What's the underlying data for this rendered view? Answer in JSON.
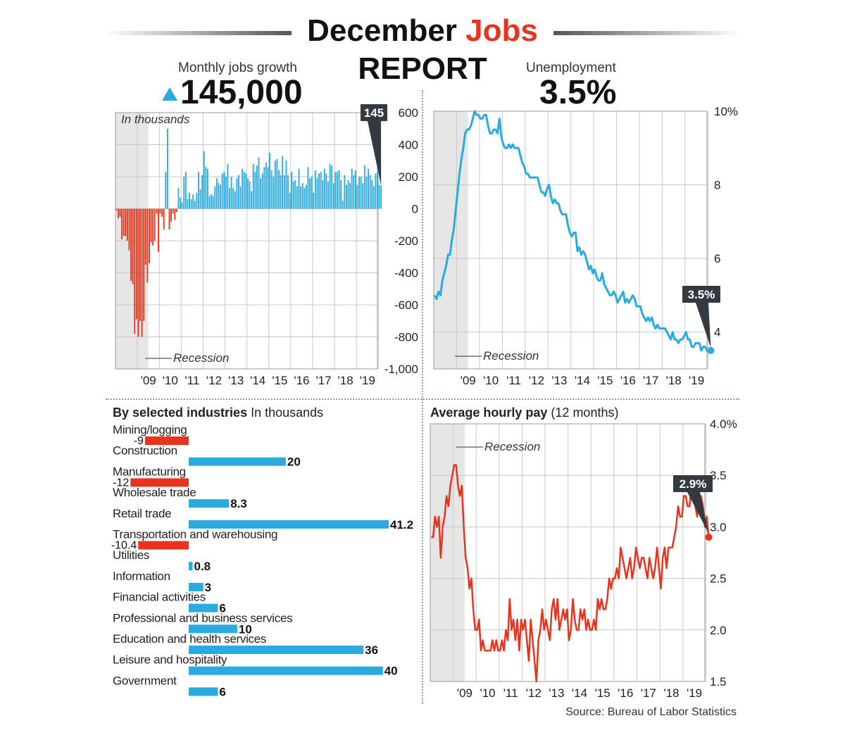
{
  "header": {
    "title_part1": "December",
    "title_accent": "Jobs",
    "title_line2": "REPORT"
  },
  "kpis": {
    "jobs_label": "Monthly jobs growth",
    "jobs_value": "145,000",
    "unemployment_label": "Unemployment",
    "unemployment_value": "3.5%"
  },
  "industries_section": {
    "title_bold": "By selected industries",
    "title_rest": "In thousands"
  },
  "pay_section": {
    "title_bold": "Average hourly pay",
    "title_rest": "(12 months)"
  },
  "source": "Source: Bureau of Labor Statistics",
  "colors": {
    "accent_red": "#e8341c",
    "accent_blue": "#29abe2",
    "recession_band": "#e6e6e6",
    "callout": "#333a40"
  },
  "chart_data": [
    {
      "type": "bar",
      "name": "jobs",
      "subtitle": "In thousands",
      "x_tick_labels": [
        "'09",
        "'10",
        "'11",
        "'12",
        "'13",
        "'14",
        "'15",
        "'16",
        "'17",
        "'18",
        "'19"
      ],
      "ylim": [
        -1000,
        600
      ],
      "y_ticks": [
        600,
        400,
        200,
        0,
        -200,
        -400,
        -600,
        -800,
        -1000
      ],
      "y_tick_labels": [
        "600",
        "400",
        "200",
        "0",
        "-200",
        "-400",
        "-600",
        "-800",
        "-1,000"
      ],
      "recession_label": "Recession",
      "recession_span": [
        "2008-01",
        "2009-06"
      ],
      "last_value_label": "145",
      "series": [
        {
          "start": "2008-01",
          "values": [
            -10,
            -60,
            -50,
            -190,
            -170,
            -170,
            -200,
            -260,
            -450,
            -470,
            -780,
            -690,
            -800,
            -700,
            -800,
            -700,
            -350,
            -460,
            -340,
            -210,
            -230,
            -200,
            -30,
            -270,
            -30,
            -50,
            -130,
            230,
            500,
            -130,
            -80,
            -30,
            -70,
            -20,
            130,
            70,
            40,
            200,
            230,
            60,
            100,
            60,
            90,
            50,
            100,
            230,
            120,
            210,
            360,
            260,
            250,
            80,
            90,
            80,
            140,
            190,
            160,
            150,
            220,
            230,
            200,
            280,
            130,
            200,
            130,
            110,
            190,
            210,
            140,
            250,
            230,
            220,
            190,
            170,
            110,
            280,
            230,
            270,
            320,
            190,
            220,
            260,
            290,
            260,
            350,
            240,
            200,
            300,
            310,
            240,
            210,
            330,
            210,
            300,
            210,
            100,
            230,
            170,
            180,
            140,
            250,
            140,
            160,
            130,
            150,
            260,
            190,
            200,
            100,
            240,
            190,
            220,
            230,
            180,
            250,
            220,
            170,
            280,
            270,
            160,
            230,
            230,
            240,
            180,
            50,
            210,
            150,
            180,
            160,
            250,
            210,
            240,
            150,
            200,
            200,
            160,
            270,
            200,
            250,
            210,
            180,
            140,
            220,
            230,
            150,
            145
          ]
        }
      ]
    },
    {
      "type": "line",
      "name": "unemployment",
      "x_tick_labels": [
        "'09",
        "'10",
        "'11",
        "'12",
        "'13",
        "'14",
        "'15",
        "'16",
        "'17",
        "'18",
        "'19"
      ],
      "y_tick_labels": [
        "10%",
        "8",
        "6",
        "4"
      ],
      "y_ticks": [
        10,
        8,
        6,
        4
      ],
      "ylim": [
        3.0,
        10.0
      ],
      "recession_label": "Recession",
      "recession_span": [
        "2008-01",
        "2009-06"
      ],
      "last_value_label": "3.5%",
      "series": [
        {
          "start": "2008-01",
          "values": [
            5.0,
            4.9,
            5.1,
            5.0,
            5.4,
            5.6,
            5.8,
            6.1,
            6.1,
            6.5,
            6.8,
            7.3,
            7.8,
            8.3,
            8.7,
            9.0,
            9.4,
            9.5,
            9.5,
            9.6,
            9.8,
            10.0,
            9.9,
            9.9,
            9.8,
            9.8,
            9.9,
            9.9,
            9.6,
            9.4,
            9.4,
            9.5,
            9.5,
            9.4,
            9.8,
            9.3,
            9.1,
            9.0,
            9.0,
            9.1,
            9.0,
            9.1,
            9.0,
            9.0,
            9.0,
            8.8,
            8.6,
            8.5,
            8.3,
            8.3,
            8.2,
            8.2,
            8.2,
            8.2,
            8.2,
            8.0,
            7.8,
            7.8,
            7.7,
            7.9,
            8.0,
            7.7,
            7.5,
            7.6,
            7.5,
            7.5,
            7.3,
            7.2,
            7.2,
            7.2,
            6.9,
            6.7,
            6.6,
            6.7,
            6.7,
            6.2,
            6.3,
            6.1,
            6.2,
            6.1,
            5.9,
            5.7,
            5.8,
            5.6,
            5.7,
            5.5,
            5.4,
            5.4,
            5.6,
            5.3,
            5.2,
            5.1,
            5.0,
            5.0,
            5.1,
            5.0,
            4.8,
            4.9,
            5.0,
            5.1,
            4.8,
            4.9,
            4.8,
            4.9,
            5.0,
            4.9,
            4.7,
            4.7,
            4.7,
            4.5,
            4.4,
            4.3,
            4.4,
            4.3,
            4.4,
            4.2,
            4.1,
            4.2,
            4.1,
            4.1,
            4.1,
            4.1,
            4.0,
            3.9,
            3.8,
            4.0,
            3.8,
            3.8,
            3.7,
            3.8,
            3.8,
            3.9,
            4.0,
            3.8,
            3.8,
            3.6,
            3.6,
            3.7,
            3.7,
            3.7,
            3.5,
            3.6,
            3.6,
            3.5,
            3.5,
            3.5
          ]
        }
      ]
    },
    {
      "type": "line",
      "name": "hourly_pay",
      "x_tick_labels": [
        "'09",
        "'10",
        "'11",
        "'12",
        "'13",
        "'14",
        "'15",
        "'16",
        "'17",
        "'18",
        "'19"
      ],
      "y_tick_labels": [
        "4.0%",
        "3.5",
        "3.0",
        "2.5",
        "2.0",
        "1.5"
      ],
      "y_ticks": [
        4.0,
        3.5,
        3.0,
        2.5,
        2.0,
        1.5
      ],
      "ylim": [
        1.5,
        4.0
      ],
      "recession_label": "Recession",
      "recession_span": [
        "2008-01",
        "2009-06"
      ],
      "last_value_label": "2.9%",
      "series": [
        {
          "start": "2008-01",
          "values": [
            2.9,
            2.9,
            3.1,
            3.0,
            3.1,
            2.7,
            3.0,
            3.1,
            3.3,
            3.2,
            3.4,
            3.5,
            3.6,
            3.6,
            3.4,
            3.3,
            3.4,
            3.0,
            2.7,
            2.6,
            2.4,
            2.5,
            2.2,
            2.0,
            2.0,
            2.1,
            1.8,
            1.9,
            1.8,
            1.8,
            1.8,
            1.8,
            1.9,
            1.8,
            1.9,
            1.8,
            1.8,
            1.9,
            1.8,
            2.0,
            1.9,
            2.3,
            2.0,
            2.1,
            1.9,
            2.1,
            1.8,
            2.1,
            2.0,
            2.1,
            1.9,
            1.7,
            2.1,
            1.9,
            1.7,
            1.5,
            1.9,
            2.0,
            2.2,
            2.0,
            2.1,
            2.0,
            1.9,
            2.2,
            2.3,
            2.1,
            2.3,
            2.0,
            2.1,
            2.2,
            2.1,
            2.2,
            1.9,
            2.0,
            2.3,
            2.1,
            2.0,
            2.0,
            2.2,
            2.1,
            2.2,
            2.0,
            2.1,
            2.0,
            2.0,
            2.1,
            2.0,
            2.3,
            2.2,
            2.3,
            2.2,
            2.2,
            2.3,
            2.5,
            2.4,
            2.5,
            2.5,
            2.6,
            2.5,
            2.8,
            2.7,
            2.6,
            2.5,
            2.6,
            2.7,
            2.5,
            2.6,
            2.8,
            2.7,
            2.6,
            2.7,
            2.7,
            2.6,
            2.5,
            2.7,
            2.6,
            2.5,
            2.6,
            2.8,
            2.6,
            2.4,
            2.7,
            2.8,
            2.6,
            2.8,
            2.8,
            2.8,
            2.9,
            3.0,
            3.2,
            3.1,
            3.1,
            3.3,
            3.3,
            3.2,
            3.2,
            3.4,
            3.3,
            3.2,
            3.1,
            3.3,
            3.3,
            3.2,
            3.0,
            3.1,
            2.9
          ]
        }
      ]
    },
    {
      "type": "bar",
      "name": "industries",
      "orientation": "horizontal",
      "categories": [
        "Mining/logging",
        "Construction",
        "Manufacturing",
        "Wholesale trade",
        "Retail trade",
        "Transportation and warehousing",
        "Utilities",
        "Information",
        "Financial activities",
        "Professional and business services",
        "Education and health services",
        "Leisure and hospitality",
        "Government"
      ],
      "values": [
        -9,
        20,
        -12,
        8.3,
        41.2,
        -10.4,
        0.8,
        3,
        6,
        10,
        36,
        40,
        6
      ],
      "value_labels": [
        "-9",
        "20",
        "-12",
        "8.3",
        "41.2",
        "-10.4",
        "0.8",
        "3",
        "6",
        "10",
        "36",
        "40",
        "6"
      ]
    }
  ]
}
